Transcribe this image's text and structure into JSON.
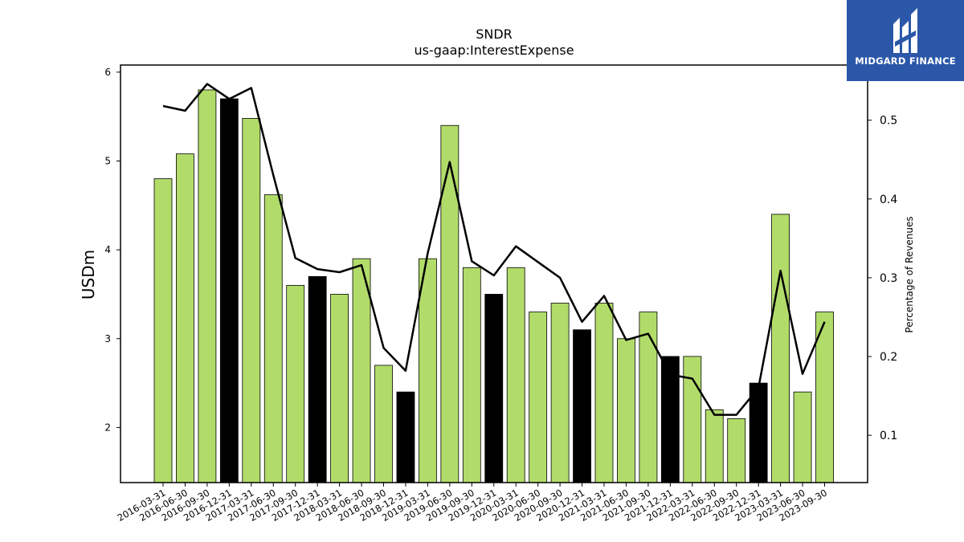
{
  "brand": {
    "name": "MIDGARD FINANCE",
    "background_color": "#2b57a8"
  },
  "chart_data": {
    "type": "bar",
    "title": "SNDR",
    "subtitle": "us-gaap:InterestExpense",
    "ylabel": "USDm",
    "y2label": "Percentage of Revenues",
    "ylim": [
      1.38,
      6.08
    ],
    "y2lim": [
      0.04,
      0.57
    ],
    "yticks": [
      "2",
      "3",
      "4",
      "5",
      "6"
    ],
    "y2ticks": [
      "0.1",
      "0.2",
      "0.3",
      "0.4",
      "0.5"
    ],
    "categories": [
      "2016-03-31",
      "2016-06-30",
      "2016-09-30",
      "2016-12-31",
      "2017-03-31",
      "2017-06-30",
      "2017-09-30",
      "2017-12-31",
      "2018-03-31",
      "2018-06-30",
      "2018-09-30",
      "2018-12-31",
      "2019-03-31",
      "2019-06-30",
      "2019-09-30",
      "2019-12-31",
      "2020-03-31",
      "2020-06-30",
      "2020-09-30",
      "2020-12-31",
      "2021-03-31",
      "2021-06-30",
      "2021-09-30",
      "2021-12-31",
      "2022-03-31",
      "2022-06-30",
      "2022-09-30",
      "2022-12-31",
      "2023-03-31",
      "2023-06-30",
      "2023-09-30"
    ],
    "series": [
      {
        "type": "bar",
        "values": [
          4.8,
          5.08,
          5.8,
          5.7,
          5.48,
          4.62,
          3.6,
          3.7,
          3.5,
          3.9,
          2.7,
          2.4,
          3.9,
          5.4,
          3.8,
          3.5,
          3.8,
          3.3,
          3.4,
          3.1,
          3.4,
          3.0,
          3.3,
          2.8,
          2.8,
          2.2,
          2.1,
          2.5,
          4.4,
          2.4,
          3.3
        ],
        "highlight": [
          false,
          false,
          false,
          true,
          false,
          false,
          false,
          true,
          false,
          false,
          false,
          true,
          false,
          false,
          false,
          true,
          false,
          false,
          false,
          true,
          false,
          false,
          false,
          true,
          false,
          false,
          false,
          true,
          false,
          false,
          false
        ]
      },
      {
        "type": "line",
        "axis": "right",
        "values": [
          0.518,
          0.512,
          0.546,
          0.527,
          0.541,
          0.43,
          0.325,
          0.311,
          0.307,
          0.316,
          0.211,
          0.182,
          0.331,
          0.447,
          0.321,
          0.303,
          0.34,
          0.32,
          0.3,
          0.244,
          0.277,
          0.221,
          0.229,
          0.177,
          0.172,
          0.126,
          0.126,
          0.16,
          0.309,
          0.178,
          0.244
        ]
      }
    ],
    "colors": {
      "bar": "#b2dc6a",
      "bar_highlight": "#000000",
      "line": "#000000"
    },
    "grid": false,
    "legend": "none"
  }
}
